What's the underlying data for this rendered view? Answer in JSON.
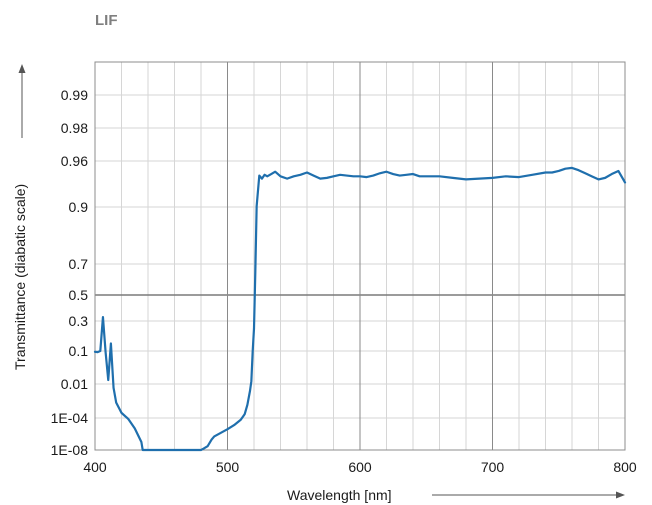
{
  "chart_data": {
    "type": "line",
    "title": "LIF",
    "xlabel": "Wavelength [nm]",
    "ylabel": "Transmittance (diabatic scale)",
    "xlim": [
      400,
      800
    ],
    "x_ticks": [
      400,
      500,
      600,
      700,
      800
    ],
    "x_tick_labels": [
      "400",
      "500",
      "600",
      "700",
      "800"
    ],
    "y_scale": "diabatic",
    "y_ticks": [
      {
        "label": "0.99"
      },
      {
        "label": "0.98"
      },
      {
        "label": "0.96"
      },
      {
        "label": "0.9"
      },
      {
        "label": "0.7"
      },
      {
        "label": "0.5"
      },
      {
        "label": "0.3"
      },
      {
        "label": "0.1"
      },
      {
        "label": "0.01"
      },
      {
        "label": "1E-04"
      },
      {
        "label": "1E-08"
      }
    ],
    "grid": true,
    "line_color": "#1f6fad",
    "series": [
      {
        "x": [
          400,
          402,
          404,
          406,
          408,
          410,
          412,
          414,
          416,
          420,
          425,
          430,
          435,
          436,
          440,
          450,
          460,
          470,
          480,
          482,
          485,
          488,
          490,
          495,
          500,
          505,
          510,
          513,
          515,
          517,
          518,
          519,
          520,
          521,
          522,
          524,
          526,
          528,
          530,
          533,
          536,
          540,
          545,
          550,
          555,
          560,
          565,
          570,
          575,
          580,
          585,
          590,
          595,
          600,
          605,
          610,
          615,
          620,
          625,
          630,
          635,
          640,
          645,
          650,
          660,
          670,
          680,
          690,
          700,
          710,
          720,
          730,
          740,
          745,
          750,
          755,
          760,
          765,
          770,
          775,
          780,
          785,
          790,
          795,
          800
        ],
        "y": [
          0.05,
          0.03,
          0.1,
          0.33,
          0.025,
          0.018,
          0.15,
          0.006,
          0.0008,
          0.0002,
          8e-05,
          5e-06,
          1e-07,
          1e-08,
          1e-08,
          1e-08,
          1e-08,
          1e-08,
          1e-08,
          1.5e-08,
          3e-08,
          2e-07,
          5e-07,
          1.4e-06,
          4e-06,
          1.3e-05,
          6e-05,
          0.00017,
          0.0006,
          0.004,
          0.015,
          0.06,
          0.25,
          0.65,
          0.901,
          0.941,
          0.937,
          0.942,
          0.94,
          0.943,
          0.946,
          0.94,
          0.937,
          0.94,
          0.942,
          0.945,
          0.941,
          0.937,
          0.938,
          0.94,
          0.942,
          0.941,
          0.94,
          0.94,
          0.939,
          0.941,
          0.944,
          0.946,
          0.943,
          0.941,
          0.942,
          0.943,
          0.94,
          0.94,
          0.94,
          0.938,
          0.936,
          0.937,
          0.938,
          0.94,
          0.939,
          0.942,
          0.945,
          0.945,
          0.947,
          0.95,
          0.951,
          0.948,
          0.944,
          0.94,
          0.936,
          0.938,
          0.943,
          0.947,
          0.932
        ]
      }
    ]
  }
}
